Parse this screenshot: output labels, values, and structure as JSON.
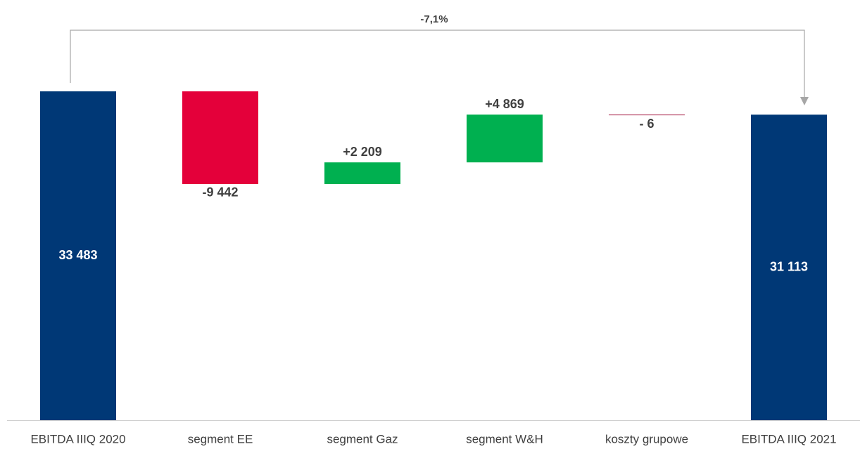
{
  "chart_data": {
    "type": "waterfall",
    "categories": [
      "EBITDA IIIQ 2020",
      "segment EE",
      "segment Gaz",
      "segment W&H",
      "koszty grupowe",
      "EBITDA IIIQ 2021"
    ],
    "values": [
      33483,
      -9442,
      2209,
      4869,
      -6,
      31113
    ],
    "value_labels": [
      "33 483",
      "-9 442",
      "+2 209",
      "+4 869",
      "- 6",
      "31 113"
    ],
    "measures": [
      "total",
      "relative",
      "relative",
      "relative",
      "relative",
      "total"
    ],
    "colors": {
      "total": "#003876",
      "negative": "#e4003a",
      "positive": "#00b050"
    },
    "annotation": "-7,1%"
  }
}
